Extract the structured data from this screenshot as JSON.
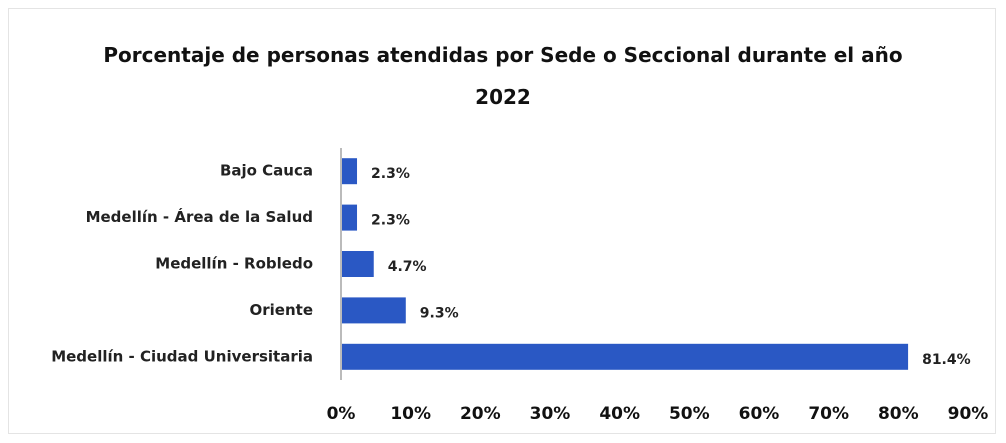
{
  "chart_data": {
    "type": "hbar",
    "title": "Porcentaje de personas atendidas por Sede o Seccional durante el año 2022",
    "categories": [
      "Bajo Cauca",
      "Medellín - Área de la Salud",
      "Medellín - Robledo",
      "Oriente",
      "Medellín - Ciudad Universitaria"
    ],
    "values": [
      2.3,
      2.3,
      4.7,
      9.3,
      81.4
    ],
    "value_labels": [
      "2.3%",
      "2.3%",
      "4.7%",
      "9.3%",
      "81.4%"
    ],
    "color": "#2a58c4",
    "xlim": [
      0,
      90
    ],
    "xticks": [
      {
        "value": 0,
        "label": "0%"
      },
      {
        "value": 10,
        "label": "10%"
      },
      {
        "value": 20,
        "label": "20%"
      },
      {
        "value": 30,
        "label": "30%"
      },
      {
        "value": 40,
        "label": "40%"
      },
      {
        "value": 50,
        "label": "50%"
      },
      {
        "value": 60,
        "label": "60%"
      },
      {
        "value": 70,
        "label": "70%"
      },
      {
        "value": 80,
        "label": "80%"
      },
      {
        "value": 90,
        "label": "90%"
      }
    ],
    "grid": false
  }
}
